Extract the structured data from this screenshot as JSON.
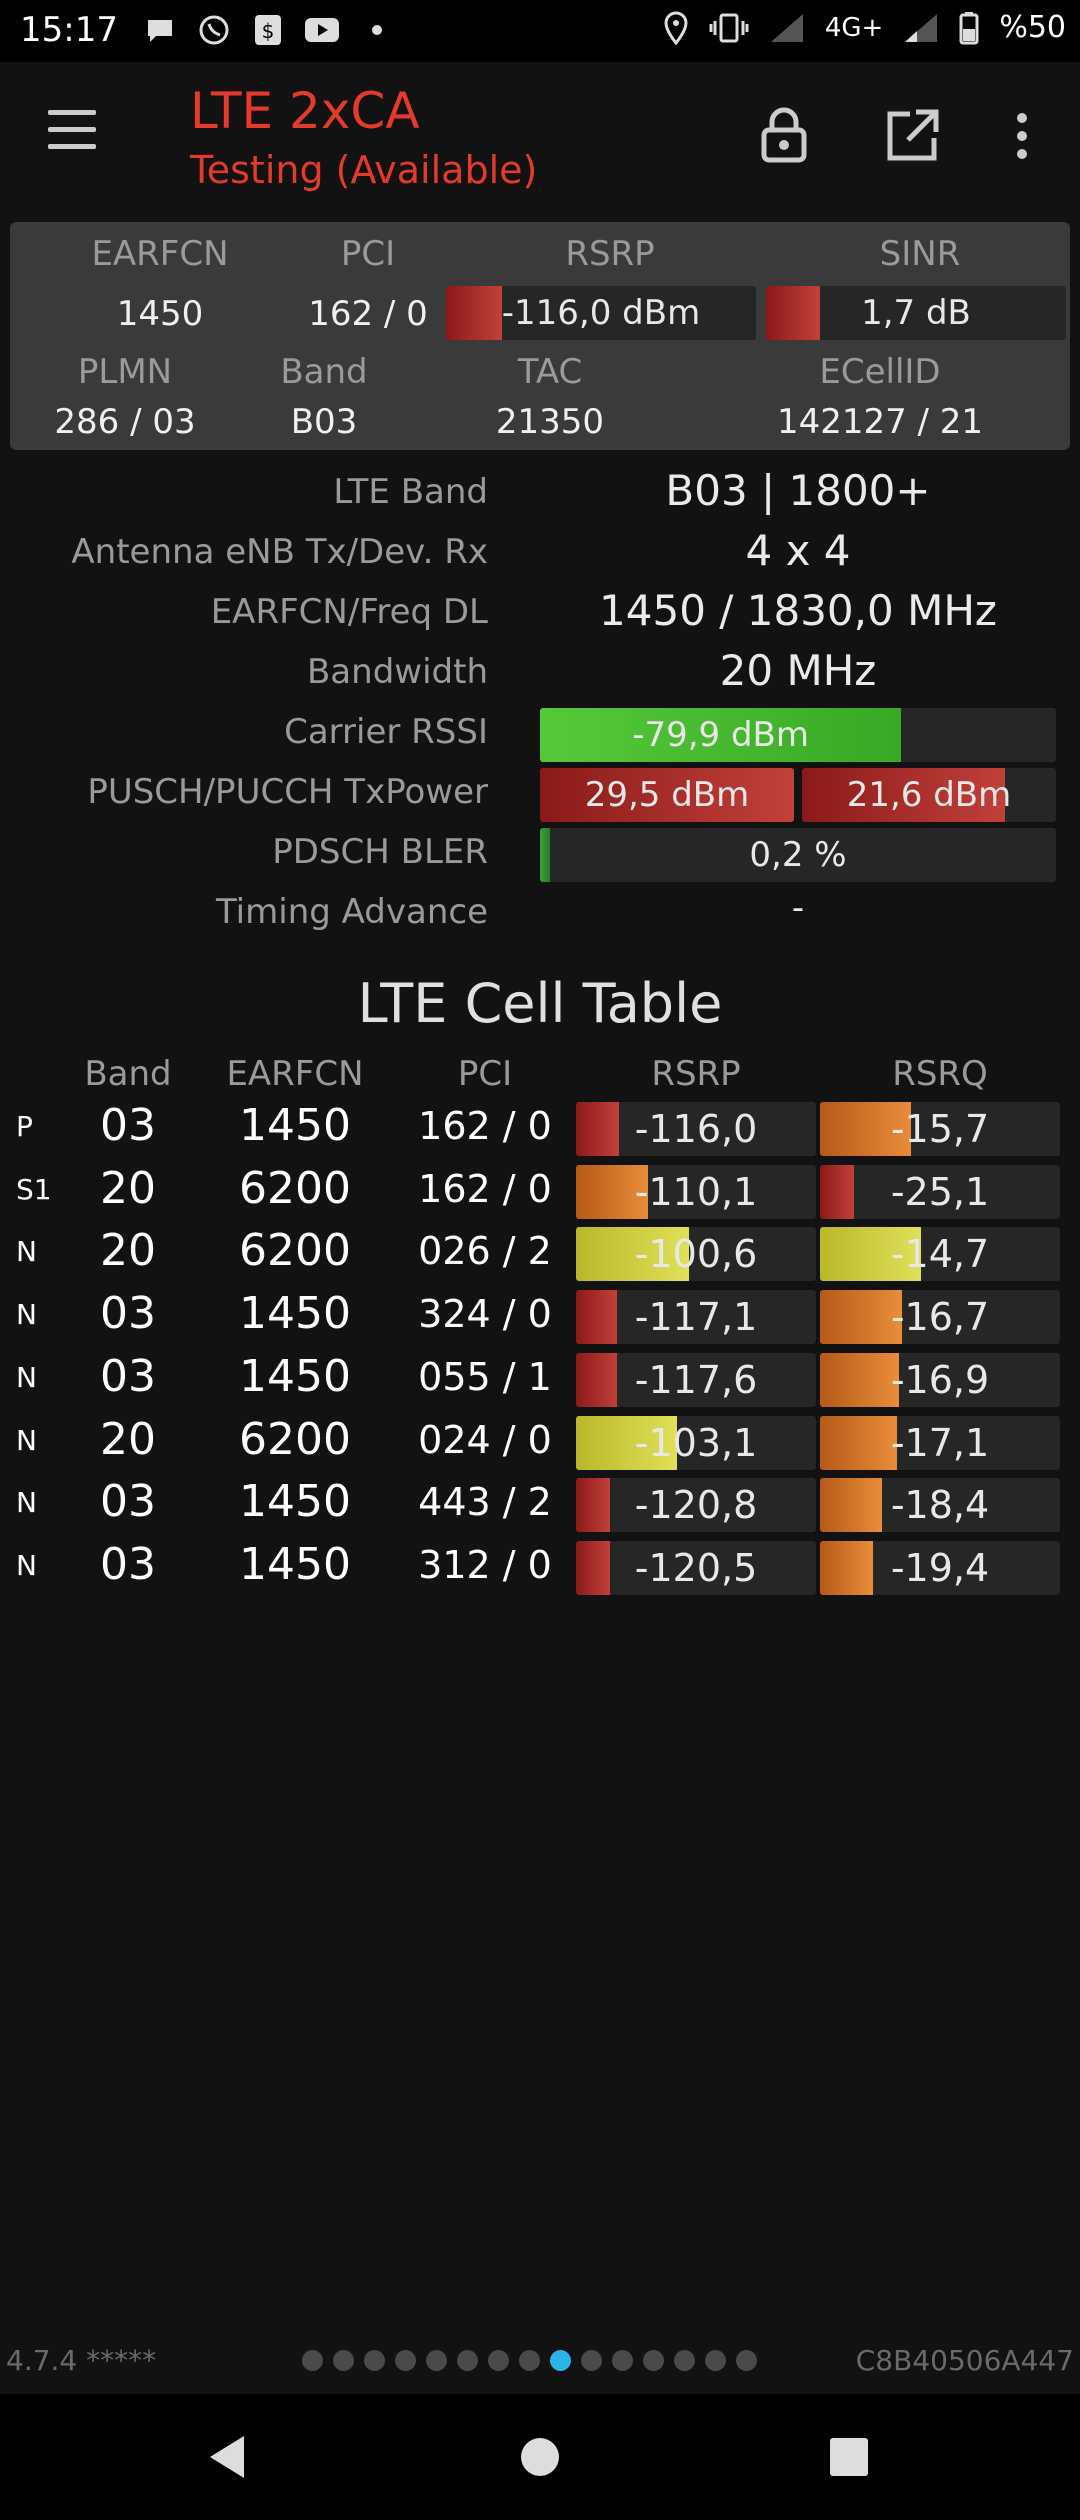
{
  "status": {
    "time": "15:17",
    "network": "4G+",
    "battery": "%50"
  },
  "app": {
    "title": "LTE 2xCA",
    "subtitle": "Testing (Available)"
  },
  "panel": {
    "earfcn_label": "EARFCN",
    "pci_label": "PCI",
    "rsrp_label": "RSRP",
    "sinr_label": "SINR",
    "earfcn": "1450",
    "pci": "162 / 0",
    "rsrp": "-116,0 dBm",
    "sinr": "1,7 dB",
    "rsrp_level": 0.18,
    "sinr_level": 0.18,
    "plmn_label": "PLMN",
    "band_label": "Band",
    "tac_label": "TAC",
    "ecellid_label": "ECellID",
    "plmn": "286 / 03",
    "band": "B03",
    "tac": "21350",
    "ecellid": "142127 / 21"
  },
  "details": {
    "lte_band_label": "LTE Band",
    "lte_band": "B03 | 1800+",
    "antenna_label": "Antenna eNB Tx/Dev. Rx",
    "antenna": "4 x 4",
    "freq_label": "EARFCN/Freq DL",
    "freq": "1450 / 1830,0 MHz",
    "bw_label": "Bandwidth",
    "bw": "20 MHz",
    "rssi_label": "Carrier RSSI",
    "rssi": "-79,9 dBm",
    "rssi_level": 0.7,
    "txpower_label": "PUSCH/PUCCH TxPower",
    "pusch": "29,5 dBm",
    "pucch": "21,6 dBm",
    "pusch_level": 1.0,
    "pucch_level": 0.8,
    "bler_label": "PDSCH BLER",
    "bler": "0,2 %",
    "bler_level": 0.02,
    "ta_label": "Timing Advance",
    "ta": "-"
  },
  "cell_table": {
    "title": "LTE Cell Table",
    "headers": {
      "band": "Band",
      "earfcn": "EARFCN",
      "pci": "PCI",
      "rsrp": "RSRP",
      "rsrq": "RSRQ"
    },
    "rows": [
      {
        "type": "P",
        "band": "03",
        "earfcn": "1450",
        "pci": "162 / 0",
        "rsrp": "-116,0",
        "rsrq": "-15,7",
        "rsrp_level": 0.18,
        "rsrq_level": 0.38,
        "rsrp_color": "red",
        "rsrq_color": "orange"
      },
      {
        "type": "S1",
        "band": "20",
        "earfcn": "6200",
        "pci": "162 / 0",
        "rsrp": "-110,1",
        "rsrq": "-25,1",
        "rsrp_level": 0.3,
        "rsrq_level": 0.14,
        "rsrp_color": "orange",
        "rsrq_color": "red"
      },
      {
        "type": "N",
        "band": "20",
        "earfcn": "6200",
        "pci": "026 / 2",
        "rsrp": "-100,6",
        "rsrq": "-14,7",
        "rsrp_level": 0.47,
        "rsrq_level": 0.42,
        "rsrp_color": "yellow",
        "rsrq_color": "yellow"
      },
      {
        "type": "N",
        "band": "03",
        "earfcn": "1450",
        "pci": "324 / 0",
        "rsrp": "-117,1",
        "rsrq": "-16,7",
        "rsrp_level": 0.17,
        "rsrq_level": 0.34,
        "rsrp_color": "red",
        "rsrq_color": "orange"
      },
      {
        "type": "N",
        "band": "03",
        "earfcn": "1450",
        "pci": "055 / 1",
        "rsrp": "-117,6",
        "rsrq": "-16,9",
        "rsrp_level": 0.17,
        "rsrq_level": 0.33,
        "rsrp_color": "red",
        "rsrq_color": "orange"
      },
      {
        "type": "N",
        "band": "20",
        "earfcn": "6200",
        "pci": "024 / 0",
        "rsrp": "-103,1",
        "rsrq": "-17,1",
        "rsrp_level": 0.42,
        "rsrq_level": 0.32,
        "rsrp_color": "yellow",
        "rsrq_color": "orange"
      },
      {
        "type": "N",
        "band": "03",
        "earfcn": "1450",
        "pci": "443 / 2",
        "rsrp": "-120,8",
        "rsrq": "-18,4",
        "rsrp_level": 0.14,
        "rsrq_level": 0.26,
        "rsrp_color": "red",
        "rsrq_color": "orange"
      },
      {
        "type": "N",
        "band": "03",
        "earfcn": "1450",
        "pci": "312 / 0",
        "rsrp": "-120,5",
        "rsrq": "-19,4",
        "rsrp_level": 0.14,
        "rsrq_level": 0.22,
        "rsrp_color": "red",
        "rsrq_color": "orange"
      }
    ]
  },
  "footer": {
    "version": "4.7.4 *****",
    "device_id": "C8B40506A447",
    "page_count": 15,
    "active_page": 8
  },
  "colors": {
    "accent_red": "#e33a2c",
    "page_indicator_active": "#2ab5e8"
  }
}
